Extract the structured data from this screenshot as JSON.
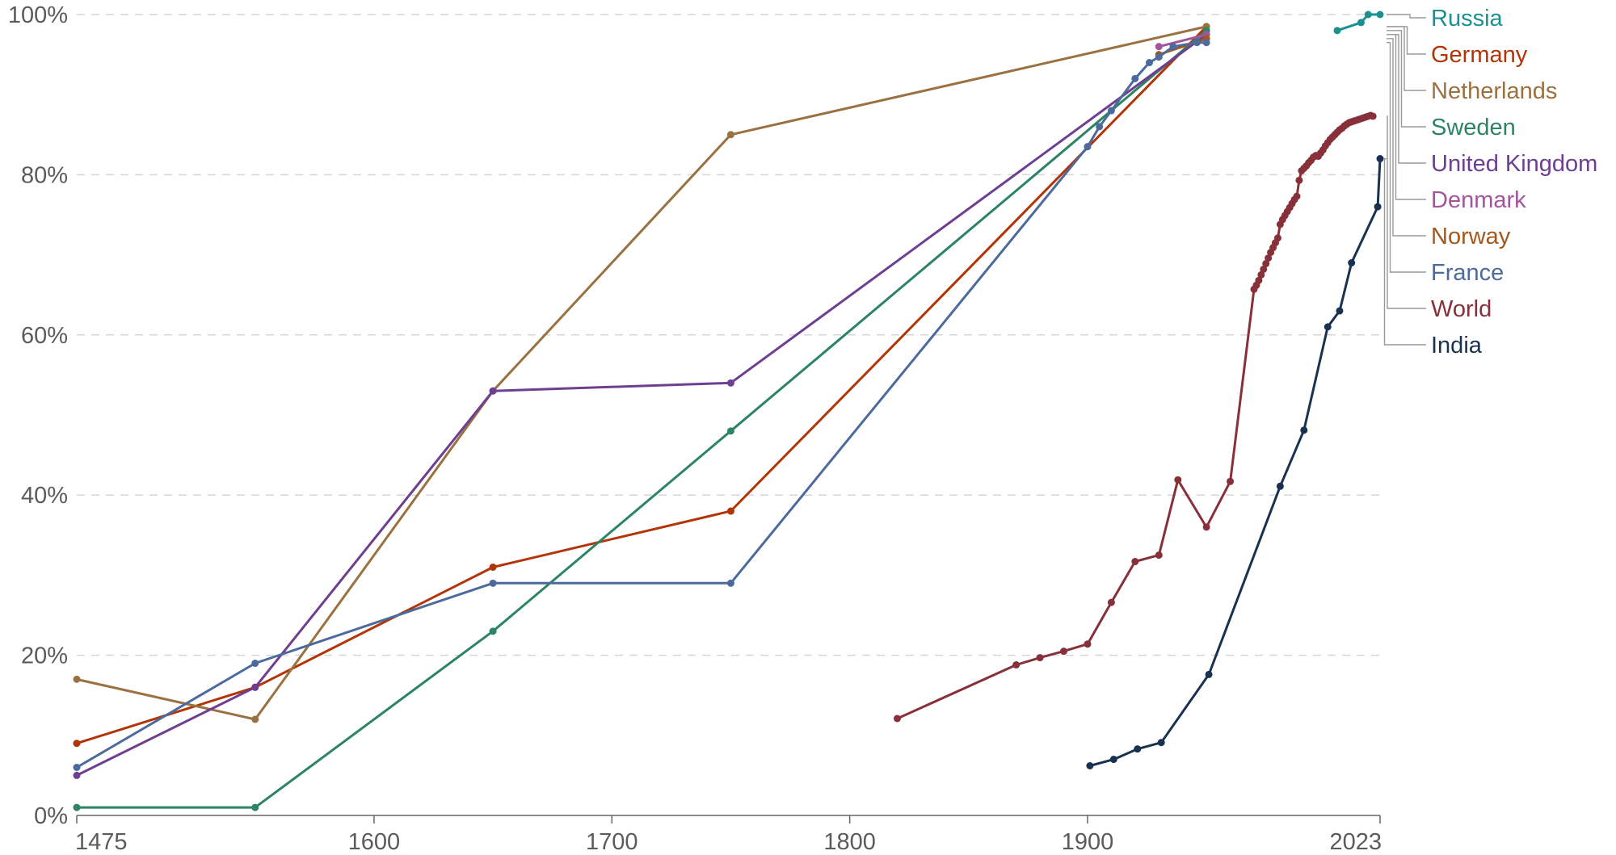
{
  "chart_data": {
    "type": "line",
    "title": "",
    "xlabel": "",
    "ylabel": "",
    "xlim": [
      1475,
      2023
    ],
    "ylim": [
      0,
      100
    ],
    "x_ticks": [
      1475,
      1600,
      1700,
      1800,
      1900,
      2023
    ],
    "x_tick_labels": [
      "1475",
      "1600",
      "1700",
      "1800",
      "1900",
      "2023"
    ],
    "y_ticks": [
      0,
      20,
      40,
      60,
      80,
      100
    ],
    "y_tick_labels": [
      "0%",
      "20%",
      "40%",
      "60%",
      "80%",
      "100%"
    ],
    "grid": true,
    "legend_placement": "right",
    "series": [
      {
        "name": "Russia",
        "color": "#1a9190",
        "label_y": 100,
        "points": [
          [
            2005,
            98
          ],
          [
            2015,
            99
          ],
          [
            2018,
            100
          ],
          [
            2023,
            100
          ]
        ]
      },
      {
        "name": "Germany",
        "color": "#b13507",
        "label_y": 98.5,
        "points": [
          [
            1475,
            9
          ],
          [
            1550,
            16
          ],
          [
            1650,
            31
          ],
          [
            1750,
            38
          ],
          [
            1950,
            98.5
          ]
        ]
      },
      {
        "name": "Netherlands",
        "color": "#9a7140",
        "label_y": 98.5,
        "points": [
          [
            1475,
            17
          ],
          [
            1550,
            12
          ],
          [
            1650,
            53
          ],
          [
            1750,
            85
          ],
          [
            1950,
            98.5
          ]
        ]
      },
      {
        "name": "Sweden",
        "color": "#2c8465",
        "label_y": 98,
        "points": [
          [
            1475,
            1
          ],
          [
            1550,
            1
          ],
          [
            1650,
            23
          ],
          [
            1750,
            48
          ],
          [
            1950,
            98
          ]
        ]
      },
      {
        "name": "United Kingdom",
        "color": "#6d3e91",
        "label_y": 97.5,
        "points": [
          [
            1475,
            5
          ],
          [
            1550,
            16
          ],
          [
            1650,
            53
          ],
          [
            1750,
            54
          ],
          [
            1950,
            97.5
          ]
        ]
      },
      {
        "name": "Denmark",
        "color": "#a2559c",
        "label_y": 97.5,
        "points": [
          [
            1930,
            96
          ],
          [
            1950,
            97.5
          ]
        ]
      },
      {
        "name": "Norway",
        "color": "#a3581e",
        "label_y": 97,
        "points": [
          [
            1930,
            95
          ],
          [
            1950,
            97
          ]
        ]
      },
      {
        "name": "France",
        "color": "#4c6a9c",
        "label_y": 96.5,
        "points": [
          [
            1475,
            6
          ],
          [
            1550,
            19
          ],
          [
            1650,
            29
          ],
          [
            1750,
            29
          ],
          [
            1900,
            83.5
          ],
          [
            1905,
            86
          ],
          [
            1910,
            88
          ],
          [
            1920,
            92
          ],
          [
            1926,
            94
          ],
          [
            1930,
            94.7
          ],
          [
            1936,
            96
          ],
          [
            1946,
            96.5
          ],
          [
            1950,
            96.5
          ]
        ]
      },
      {
        "name": "World",
        "color": "#883039",
        "label_y": 87.3,
        "points": [
          [
            1820,
            12.1
          ],
          [
            1870,
            18.8
          ],
          [
            1880,
            19.7
          ],
          [
            1890,
            20.5
          ],
          [
            1900,
            21.4
          ],
          [
            1910,
            26.6
          ],
          [
            1920,
            31.7
          ],
          [
            1930,
            32.5
          ],
          [
            1938,
            41.9
          ],
          [
            1950,
            36
          ],
          [
            1960,
            41.7
          ],
          [
            1970,
            65.7
          ],
          [
            1971,
            66.2
          ],
          [
            1972,
            66.8
          ],
          [
            1973,
            67.5
          ],
          [
            1974,
            68.2
          ],
          [
            1975,
            68.9
          ],
          [
            1976,
            69.6
          ],
          [
            1977,
            70.3
          ],
          [
            1978,
            70.9
          ],
          [
            1979,
            71.5
          ],
          [
            1980,
            72.1
          ],
          [
            1981,
            73.8
          ],
          [
            1982,
            74.4
          ],
          [
            1983,
            74.9
          ],
          [
            1984,
            75.4
          ],
          [
            1985,
            75.9
          ],
          [
            1986,
            76.4
          ],
          [
            1987,
            76.9
          ],
          [
            1988,
            77.3
          ],
          [
            1989,
            79.3
          ],
          [
            1990,
            80.5
          ],
          [
            1991,
            80.8
          ],
          [
            1992,
            81.1
          ],
          [
            1993,
            81.5
          ],
          [
            1994,
            81.8
          ],
          [
            1995,
            82.2
          ],
          [
            1996,
            82.4
          ],
          [
            1997,
            82.3
          ],
          [
            1998,
            82.7
          ],
          [
            1999,
            83.1
          ],
          [
            2000,
            83.6
          ],
          [
            2001,
            84
          ],
          [
            2002,
            84.4
          ],
          [
            2003,
            84.7
          ],
          [
            2004,
            85
          ],
          [
            2005,
            85.3
          ],
          [
            2006,
            85.6
          ],
          [
            2007,
            85.8
          ],
          [
            2008,
            86.1
          ],
          [
            2009,
            86.3
          ],
          [
            2010,
            86.5
          ],
          [
            2011,
            86.6
          ],
          [
            2012,
            86.7
          ],
          [
            2013,
            86.8
          ],
          [
            2014,
            86.9
          ],
          [
            2015,
            87
          ],
          [
            2016,
            87.1
          ],
          [
            2017,
            87.2
          ],
          [
            2018,
            87.3
          ],
          [
            2019,
            87.4
          ],
          [
            2020,
            87.3
          ]
        ]
      },
      {
        "name": "India",
        "color": "#18324f",
        "label_y": 82,
        "points": [
          [
            1901,
            6.2
          ],
          [
            1911,
            7
          ],
          [
            1921,
            8.3
          ],
          [
            1931,
            9.1
          ],
          [
            1951,
            17.6
          ],
          [
            1981,
            41.1
          ],
          [
            1991,
            48.1
          ],
          [
            2001,
            61
          ],
          [
            2006,
            63
          ],
          [
            2011,
            69
          ],
          [
            2022,
            76
          ],
          [
            2023,
            82
          ]
        ]
      }
    ]
  }
}
